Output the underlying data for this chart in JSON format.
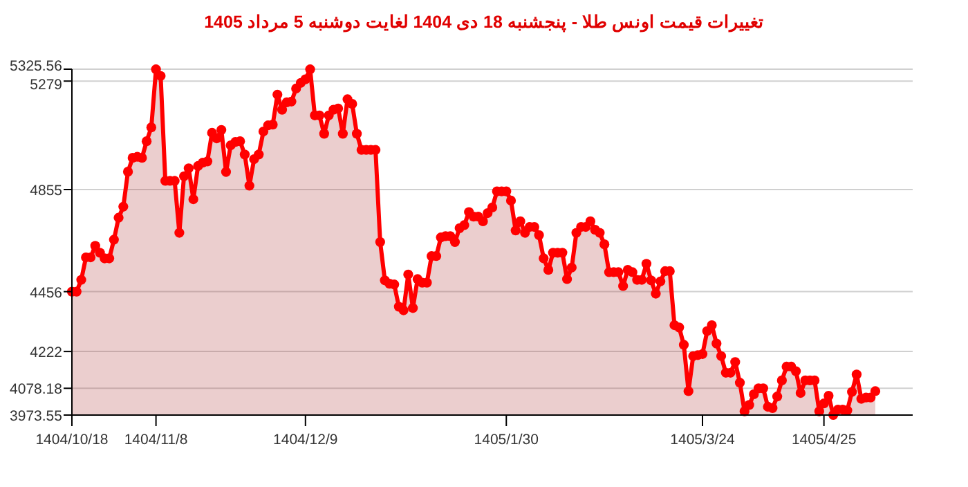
{
  "chart_data": {
    "type": "area",
    "title": "تغییرات قیمت اونس طلا - پنجشنبه  18 دی 1404 لغایت  دوشنبه  5 مرداد 1405",
    "categories": [
      "1404/10/18",
      null,
      null,
      null,
      null,
      null,
      null,
      null,
      null,
      null,
      null,
      null,
      null,
      null,
      null,
      null,
      null,
      null,
      "1404/11/8",
      null,
      null,
      null,
      null,
      null,
      null,
      null,
      null,
      null,
      null,
      null,
      null,
      null,
      null,
      null,
      null,
      null,
      null,
      null,
      null,
      null,
      null,
      null,
      null,
      null,
      null,
      null,
      null,
      null,
      null,
      null,
      "1404/12/9",
      null,
      null,
      null,
      null,
      null,
      null,
      null,
      null,
      null,
      null,
      null,
      null,
      null,
      null,
      null,
      null,
      null,
      null,
      null,
      null,
      null,
      null,
      null,
      null,
      null,
      null,
      null,
      null,
      null,
      null,
      null,
      null,
      null,
      null,
      null,
      null,
      null,
      null,
      null,
      null,
      null,
      null,
      "1405/1/30",
      null,
      null,
      null,
      null,
      null,
      null,
      null,
      null,
      null,
      null,
      null,
      null,
      null,
      null,
      null,
      null,
      null,
      null,
      null,
      null,
      null,
      null,
      null,
      null,
      null,
      null,
      null,
      null,
      null,
      null,
      null,
      null,
      null,
      null,
      null,
      null,
      null,
      null,
      null,
      null,
      null,
      "1405/3/24",
      null,
      null,
      null,
      null,
      null,
      null,
      null,
      null,
      null,
      null,
      null,
      null,
      null,
      null,
      null,
      null,
      null,
      null,
      null,
      null,
      null,
      null,
      null,
      null,
      null,
      "1405/4/25",
      null,
      null,
      null,
      null,
      null,
      null,
      null,
      null,
      null,
      null,
      null
    ],
    "series": [
      {
        "color": "#ff0000",
        "values": [
          4456,
          4456,
          4502,
          4590,
          4590,
          4635,
          4608,
          4586,
          4586,
          4659,
          4745,
          4788,
          4925,
          4979,
          4983,
          4979,
          5044,
          5098,
          5325,
          5299,
          4889,
          4889,
          4889,
          4686,
          4907,
          4938,
          4817,
          4947,
          4960,
          4965,
          5077,
          5055,
          5088,
          4924,
          5028,
          5041,
          5044,
          4992,
          4870,
          4974,
          4992,
          5082,
          5106,
          5109,
          5226,
          5167,
          5196,
          5199,
          5250,
          5272,
          5286,
          5325,
          5145,
          5145,
          5073,
          5145,
          5167,
          5172,
          5073,
          5208,
          5190,
          5073,
          5010,
          5010,
          5010,
          5010,
          4650,
          4500,
          4487,
          4484,
          4397,
          4383,
          4523,
          4392,
          4505,
          4491,
          4491,
          4595,
          4595,
          4668,
          4673,
          4673,
          4650,
          4704,
          4716,
          4767,
          4749,
          4749,
          4731,
          4763,
          4785,
          4848,
          4848,
          4848,
          4812,
          4695,
          4731,
          4686,
          4709,
          4709,
          4677,
          4586,
          4541,
          4608,
          4608,
          4608,
          4505,
          4550,
          4686,
          4709,
          4709,
          4731,
          4698,
          4686,
          4641,
          4532,
          4532,
          4532,
          4478,
          4541,
          4532,
          4502,
          4502,
          4565,
          4500,
          4448,
          4496,
          4536,
          4536,
          4325,
          4316,
          4248,
          4067,
          4204,
          4208,
          4212,
          4302,
          4325,
          4253,
          4204,
          4139,
          4139,
          4181,
          4100,
          3988,
          4013,
          4055,
          4078,
          4078,
          4006,
          4001,
          4046,
          4109,
          4163,
          4163,
          4145,
          4060,
          4109,
          4109,
          4109,
          3988,
          4019,
          4049,
          3974,
          3995,
          3995,
          3992,
          4064,
          4132,
          4037,
          4042,
          4042,
          4067
        ]
      }
    ],
    "ylim": [
      3973.55,
      5325.56
    ],
    "yticks": [
      3973.55,
      4078.18,
      4222,
      4456,
      4855,
      5279,
      5325.56
    ],
    "grid": "y",
    "marker": "circle",
    "line_style": "solid"
  }
}
